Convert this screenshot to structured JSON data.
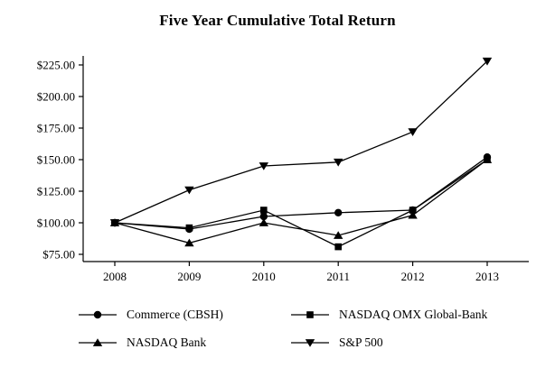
{
  "title": "Five Year Cumulative Total Return",
  "chart_data": {
    "type": "line",
    "title": "Five Year Cumulative Total Return",
    "xlabel": "",
    "ylabel": "",
    "x_labels": [
      "2008",
      "2009",
      "2010",
      "2011",
      "2012",
      "2013"
    ],
    "y_ticks": {
      "values": [
        225,
        200,
        175,
        150,
        125,
        100,
        75
      ],
      "labels": [
        "$225.00",
        "$200.00",
        "$175.00",
        "$150.00",
        "$125.00",
        "$100.00",
        "$75.00"
      ]
    },
    "ylim": [
      75,
      235
    ],
    "grid": false,
    "legend_position": "bottom",
    "line_color": "#000000",
    "series": [
      {
        "name": "Commerce (CBSH)",
        "marker": "circle",
        "values": [
          100,
          95,
          105,
          108,
          110,
          152
        ]
      },
      {
        "name": "NASDAQ OMX Global-Bank",
        "marker": "square",
        "values": [
          100,
          96,
          110,
          81,
          110,
          150
        ]
      },
      {
        "name": "NASDAQ Bank",
        "marker": "triangle-up",
        "values": [
          100,
          84,
          100,
          90,
          106,
          150
        ]
      },
      {
        "name": "S&P 500",
        "marker": "triangle-down",
        "values": [
          100,
          126,
          145,
          148,
          172,
          228
        ]
      }
    ]
  }
}
